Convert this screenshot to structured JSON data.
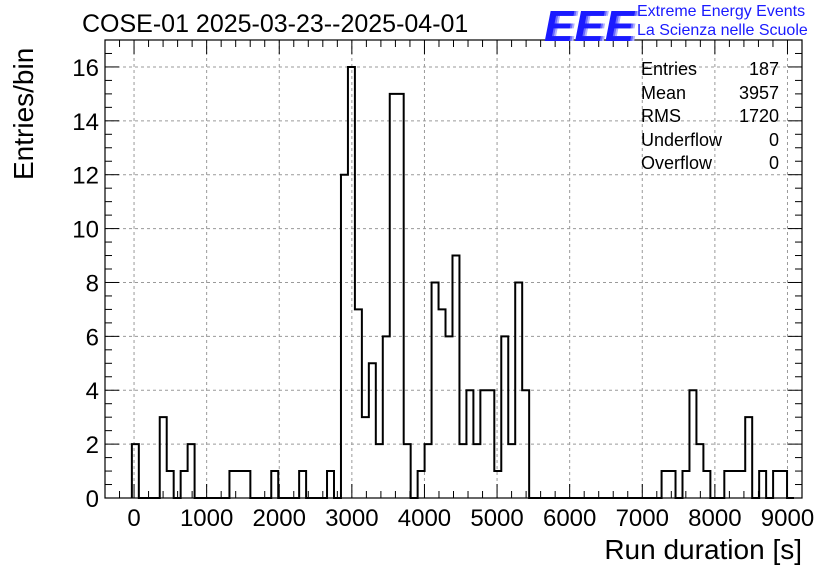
{
  "title": "COSE-01 2025-03-23--2025-04-01",
  "logo": {
    "mark": "EEE",
    "line1": "Extreme Energy Events",
    "line2": "La Scienza nelle Scuole",
    "color": "#1a1aff"
  },
  "stats": {
    "rows": [
      {
        "label": "Entries",
        "value": "187"
      },
      {
        "label": "Mean",
        "value": "3957"
      },
      {
        "label": "RMS",
        "value": "1720"
      },
      {
        "label": "Underflow",
        "value": "0"
      },
      {
        "label": "Overflow",
        "value": "0"
      }
    ]
  },
  "chart_data": {
    "type": "bar",
    "style": "step-histogram",
    "xlabel": "Run duration [s]",
    "ylabel": "Entries/bin",
    "xlim": [
      -400,
      9200
    ],
    "ylim": [
      0,
      17
    ],
    "xticks": [
      0,
      1000,
      2000,
      3000,
      4000,
      5000,
      6000,
      7000,
      8000,
      9000
    ],
    "yticks": [
      0,
      2,
      4,
      6,
      8,
      10,
      12,
      14,
      16
    ],
    "grid": true,
    "bin_width": 96,
    "bin_edges_start": -30,
    "values": [
      2,
      0,
      0,
      0,
      3,
      1,
      0,
      1,
      2,
      0,
      0,
      0,
      0,
      0,
      1,
      1,
      1,
      0,
      0,
      0,
      1,
      0,
      0,
      0,
      1,
      0,
      0,
      0,
      1,
      0,
      12,
      16,
      7,
      3,
      5,
      2,
      6,
      15,
      15,
      2,
      0,
      1,
      2,
      8,
      7,
      6,
      9,
      2,
      4,
      2,
      4,
      4,
      1,
      6,
      2,
      8,
      4,
      0,
      0,
      0,
      0,
      0,
      0,
      0,
      0,
      0,
      0,
      0,
      0,
      0,
      0,
      0,
      0,
      0,
      0,
      0,
      1,
      1,
      0,
      1,
      4,
      2,
      1,
      0,
      0,
      1,
      1,
      1,
      3,
      0,
      1,
      0,
      1,
      1,
      0
    ]
  }
}
